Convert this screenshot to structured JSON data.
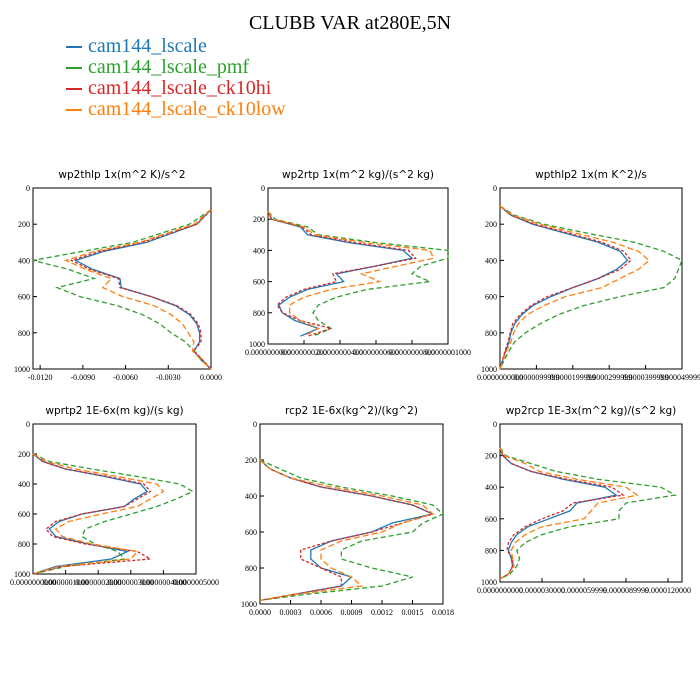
{
  "figure": {
    "title": "CLUBB VAR at280E,5N"
  },
  "legend": [
    {
      "name": "cam144_lscale",
      "color": "#1f77b4"
    },
    {
      "name": "cam144_lscale_pmf",
      "color": "#2ca02c"
    },
    {
      "name": "cam144_lscale_ck10hi",
      "color": "#d62728"
    },
    {
      "name": "cam144_lscale_ck10low",
      "color": "#ff7f0e"
    }
  ],
  "chart_data": [
    {
      "type": "line",
      "title": "wp2thlp   1x(m^2 K)/s^2",
      "xlim": [
        -0.0125,
        0.0
      ],
      "xticks": [
        "-0.0120",
        "-0.0090",
        "-0.0060",
        "-0.0030",
        "0.0000"
      ],
      "ylim": [
        1000,
        0
      ],
      "yticks": [
        "0",
        "200",
        "400",
        "600",
        "800",
        "1000"
      ],
      "y": [
        120,
        200,
        300,
        350,
        400,
        450,
        500,
        550,
        600,
        650,
        700,
        750,
        800,
        850,
        900,
        950,
        1000
      ],
      "series": [
        {
          "name": "cam144_lscale",
          "x": [
            0.0,
            -0.001,
            -0.0045,
            -0.0075,
            -0.0095,
            -0.0083,
            -0.0064,
            -0.0063,
            -0.0042,
            -0.0025,
            -0.0015,
            -0.001,
            -0.0008,
            -0.0008,
            -0.0012,
            -0.0007,
            0.0
          ]
        },
        {
          "name": "cam144_lscale_pmf",
          "x": [
            0.0,
            -0.0015,
            -0.0055,
            -0.009,
            -0.0125,
            -0.01,
            -0.0082,
            -0.0108,
            -0.0092,
            -0.0066,
            -0.0048,
            -0.0036,
            -0.0028,
            -0.0018,
            -0.0012,
            -0.0006,
            0.0
          ]
        },
        {
          "name": "cam144_lscale_ck10hi",
          "x": [
            0.0,
            -0.001,
            -0.0048,
            -0.0078,
            -0.0098,
            -0.0085,
            -0.0065,
            -0.0064,
            -0.0042,
            -0.0024,
            -0.0014,
            -0.0009,
            -0.0007,
            -0.0007,
            -0.0012,
            -0.0006,
            0.0
          ]
        },
        {
          "name": "cam144_lscale_ck10low",
          "x": [
            0.0,
            -0.0012,
            -0.005,
            -0.0082,
            -0.0102,
            -0.0088,
            -0.007,
            -0.0076,
            -0.0062,
            -0.004,
            -0.0028,
            -0.002,
            -0.0016,
            -0.0012,
            -0.0013,
            -0.0007,
            0.0
          ]
        }
      ]
    },
    {
      "type": "line",
      "title": "wp2rtp   1x(m^2 kg)/(s^2 kg)",
      "xlim": [
        0.0,
        1e-07
      ],
      "xticks": [
        "0.0000000000",
        "0.0000000200",
        "0.0000000400",
        "0.0000000600",
        "0.0000000800",
        "0.0000001000"
      ],
      "ylim": [
        1000,
        0
      ],
      "yticks": [
        "0",
        "200",
        "400",
        "600",
        "800",
        "1000"
      ],
      "y": [
        150,
        200,
        250,
        300,
        350,
        400,
        450,
        500,
        550,
        600,
        650,
        700,
        750,
        800,
        850,
        900,
        950
      ],
      "series": [
        {
          "name": "cam144_lscale",
          "x": [
            0.0,
            2e-09,
            1.8e-08,
            2.2e-08,
            4.5e-08,
            7.5e-08,
            8e-08,
            6e-08,
            3.8e-08,
            4.2e-08,
            2.2e-08,
            1.2e-08,
            6e-09,
            8e-09,
            1.5e-08,
            2.8e-08,
            1.8e-08
          ]
        },
        {
          "name": "cam144_lscale_pmf",
          "x": [
            0.0,
            4e-09,
            2.2e-08,
            2.8e-08,
            6e-08,
            1e-07,
            1e-07,
            8.5e-08,
            8e-08,
            9e-08,
            5.5e-08,
            3.8e-08,
            2.8e-08,
            2.5e-08,
            2.8e-08,
            3.5e-08,
            2.5e-08
          ]
        },
        {
          "name": "cam144_lscale_ck10hi",
          "x": [
            0.0,
            2e-09,
            1.9e-08,
            2.4e-08,
            4.8e-08,
            7.8e-08,
            8.2e-08,
            6e-08,
            3.6e-08,
            3.8e-08,
            2e-08,
            1e-08,
            5e-09,
            8e-09,
            1.8e-08,
            3.5e-08,
            2.2e-08
          ]
        },
        {
          "name": "cam144_lscale_ck10low",
          "x": [
            0.0,
            3e-09,
            2e-08,
            2.6e-08,
            5.4e-08,
            9e-08,
            9.2e-08,
            7.2e-08,
            5.2e-08,
            6.2e-08,
            3.5e-08,
            2e-08,
            1.2e-08,
            1.2e-08,
            1.8e-08,
            2.8e-08,
            2e-08
          ]
        }
      ]
    },
    {
      "type": "line",
      "title": "wpthlp2   1x(m K^2)/s",
      "xlim": [
        0.0,
        5e-05
      ],
      "xticks": [
        "0.0000000000",
        "0.0000099999",
        "0.0000199999",
        "0.0000299999",
        "0.0000399999",
        "0.0000499999"
      ],
      "ylim": [
        1000,
        0
      ],
      "yticks": [
        "0",
        "200",
        "400",
        "600",
        "800",
        "1000"
      ],
      "y": [
        100,
        150,
        200,
        250,
        300,
        350,
        400,
        450,
        500,
        550,
        600,
        650,
        700,
        750,
        800,
        850,
        900,
        950,
        1000
      ],
      "series": [
        {
          "name": "cam144_lscale",
          "x": [
            0.0,
            3e-06,
            9e-06,
            1.8e-05,
            2.7e-05,
            3.3e-05,
            3.5e-05,
            3.2e-05,
            2.7e-05,
            2e-05,
            1.4e-05,
            9e-06,
            6e-06,
            4e-06,
            3e-06,
            2.5e-06,
            1.5e-06,
            8e-07,
            0.0
          ]
        },
        {
          "name": "cam144_lscale_pmf",
          "x": [
            0.0,
            4e-06,
            1.2e-05,
            2.4e-05,
            3.7e-05,
            4.5e-05,
            5e-05,
            4.9e-05,
            4.8e-05,
            4.5e-05,
            3.3e-05,
            2.3e-05,
            1.6e-05,
            1.1e-05,
            7e-06,
            4e-06,
            2.5e-06,
            1.2e-06,
            0.0
          ]
        },
        {
          "name": "cam144_lscale_ck10hi",
          "x": [
            0.0,
            3e-06,
            9.5e-06,
            1.9e-05,
            2.8e-05,
            3.4e-05,
            3.6e-05,
            3.3e-05,
            2.7e-05,
            2e-05,
            1.3e-05,
            8.5e-06,
            5.5e-06,
            3.5e-06,
            2.8e-06,
            2.2e-06,
            1.4e-06,
            7e-07,
            0.0
          ]
        },
        {
          "name": "cam144_lscale_ck10low",
          "x": [
            0.0,
            3.5e-06,
            1.1e-05,
            2.1e-05,
            3.1e-05,
            3.8e-05,
            4.1e-05,
            3.8e-05,
            3.3e-05,
            2.8e-05,
            1.8e-05,
            1.2e-05,
            7.5e-06,
            5e-06,
            3.8e-06,
            3e-06,
            1.8e-06,
            9e-07,
            0.0
          ]
        }
      ]
    },
    {
      "type": "line",
      "title": "wprtp2   1E-6x(m kg)/(s kg)",
      "xlim": [
        0.0,
        5e-07
      ],
      "xticks": [
        "0.0000000000",
        "0.0000001000",
        "0.0000002000",
        "0.0000003000",
        "0.0000004000",
        "0.0000005000"
      ],
      "ylim": [
        1000,
        0
      ],
      "yticks": [
        "0",
        "200",
        "400",
        "600",
        "800",
        "1000"
      ],
      "y": [
        200,
        250,
        300,
        350,
        400,
        450,
        500,
        550,
        600,
        650,
        700,
        750,
        800,
        850,
        900,
        950,
        1000
      ],
      "series": [
        {
          "name": "cam144_lscale",
          "x": [
            0.0,
            3e-08,
            1e-07,
            2.2e-07,
            3.3e-07,
            3.5e-07,
            3.1e-07,
            2.8e-07,
            1.5e-07,
            8e-08,
            5e-08,
            7e-08,
            1.7e-07,
            2.9e-07,
            2.4e-07,
            7e-08,
            0.0
          ]
        },
        {
          "name": "cam144_lscale_pmf",
          "x": [
            0.0,
            5e-08,
            1.8e-07,
            3.2e-07,
            4.5e-07,
            4.9e-07,
            4.4e-07,
            3.8e-07,
            3e-07,
            2.2e-07,
            1.6e-07,
            1.5e-07,
            1.9e-07,
            2.6e-07,
            2.8e-07,
            1e-07,
            0.0
          ]
        },
        {
          "name": "cam144_lscale_ck10hi",
          "x": [
            0.0,
            3e-08,
            1e-07,
            2.3e-07,
            3.4e-07,
            3.6e-07,
            3.2e-07,
            2.8e-07,
            1.5e-07,
            7e-08,
            4e-08,
            6e-08,
            1.6e-07,
            3.2e-07,
            3.6e-07,
            9e-08,
            0.0
          ]
        },
        {
          "name": "cam144_lscale_ck10low",
          "x": [
            0.0,
            4e-08,
            1.3e-07,
            2.6e-07,
            3.8e-07,
            4e-07,
            3.6e-07,
            3.2e-07,
            2.1e-07,
            1.1e-07,
            7e-08,
            9e-08,
            1.8e-07,
            3.2e-07,
            3e-07,
            8e-08,
            0.0
          ]
        }
      ]
    },
    {
      "type": "line",
      "title": "rcp2   1E-6x(kg^2)/(kg^2)",
      "xlim": [
        0.0,
        0.0018
      ],
      "xticks": [
        "0.0000",
        "0.0003",
        "0.0006",
        "0.0009",
        "0.0012",
        "0.0015",
        "0.0018"
      ],
      "ylim": [
        1000,
        0
      ],
      "yticks": [
        "0",
        "200",
        "400",
        "600",
        "800",
        "1000"
      ],
      "y": [
        200,
        250,
        300,
        350,
        400,
        450,
        500,
        550,
        600,
        650,
        700,
        750,
        800,
        850,
        900,
        950,
        980
      ],
      "series": [
        {
          "name": "cam144_lscale",
          "x": [
            0.0,
            0.0001,
            0.0003,
            0.0006,
            0.0011,
            0.0015,
            0.0017,
            0.0013,
            0.0011,
            0.0007,
            0.0005,
            0.0005,
            0.0006,
            0.0009,
            0.0008,
            0.0003,
            0.0
          ]
        },
        {
          "name": "cam144_lscale_pmf",
          "x": [
            0.0,
            0.0002,
            0.0004,
            0.0008,
            0.0013,
            0.0017,
            0.0018,
            0.0016,
            0.0015,
            0.001,
            0.0008,
            0.0008,
            0.0011,
            0.0015,
            0.0012,
            0.0004,
            0.0
          ]
        },
        {
          "name": "cam144_lscale_ck10hi",
          "x": [
            0.0,
            0.0001,
            0.0003,
            0.0006,
            0.0011,
            0.0015,
            0.0017,
            0.0014,
            0.0011,
            0.0007,
            0.0004,
            0.0004,
            0.0006,
            0.0008,
            0.0008,
            0.0003,
            0.0
          ]
        },
        {
          "name": "cam144_lscale_ck10low",
          "x": [
            0.0,
            0.0001,
            0.0003,
            0.0007,
            0.0012,
            0.0016,
            0.0017,
            0.0014,
            0.0012,
            0.0008,
            0.0006,
            0.0006,
            0.0007,
            0.0009,
            0.001,
            0.0003,
            0.0
          ]
        }
      ]
    },
    {
      "type": "line",
      "title": "wp2rcp   1E-3x(m^2 kg)/(s^2 kg)",
      "xlim": [
        0.0,
        1.3e-05
      ],
      "xticks": [
        "0.0000000000",
        "0.0000030000",
        "0.0000059999",
        "0.0000089999",
        "0.0000120000"
      ],
      "ylim": [
        1000,
        0
      ],
      "yticks": [
        "0",
        "200",
        "400",
        "600",
        "800",
        "1000"
      ],
      "y": [
        150,
        200,
        250,
        300,
        350,
        400,
        450,
        500,
        550,
        600,
        650,
        700,
        750,
        800,
        850,
        900,
        950,
        980
      ],
      "series": [
        {
          "name": "cam144_lscale",
          "x": [
            0.0,
            2e-07,
            8e-07,
            2.2e-06,
            4.5e-06,
            7.5e-06,
            8.3e-06,
            5.5e-06,
            5e-06,
            3.5e-06,
            2e-06,
            1.2e-06,
            8e-07,
            6e-07,
            8e-07,
            9e-07,
            6e-07,
            0.0
          ]
        },
        {
          "name": "cam144_lscale_pmf",
          "x": [
            0.0,
            4e-07,
            2.2e-06,
            4e-06,
            7e-06,
            1.15e-05,
            1.25e-05,
            9e-06,
            8.5e-06,
            8.5e-06,
            5e-06,
            3e-06,
            1.8e-06,
            1.2e-06,
            1.4e-06,
            1.2e-06,
            7e-07,
            0.0
          ]
        },
        {
          "name": "cam144_lscale_ck10hi",
          "x": [
            0.0,
            2e-07,
            8e-07,
            2.2e-06,
            4.8e-06,
            8e-06,
            8.8e-06,
            5.2e-06,
            4.5e-06,
            3e-06,
            1.8e-06,
            1e-06,
            6e-07,
            5e-07,
            9e-07,
            9e-07,
            6e-07,
            0.0
          ]
        },
        {
          "name": "cam144_lscale_ck10low",
          "x": [
            0.0,
            3e-07,
            1.8e-06,
            2.8e-06,
            5.5e-06,
            9e-06,
            9.8e-06,
            7e-06,
            6.5e-06,
            6e-06,
            3e-06,
            1.8e-06,
            1.1e-06,
            8e-07,
            9e-07,
            1e-06,
            6e-07,
            0.0
          ]
        }
      ]
    }
  ]
}
